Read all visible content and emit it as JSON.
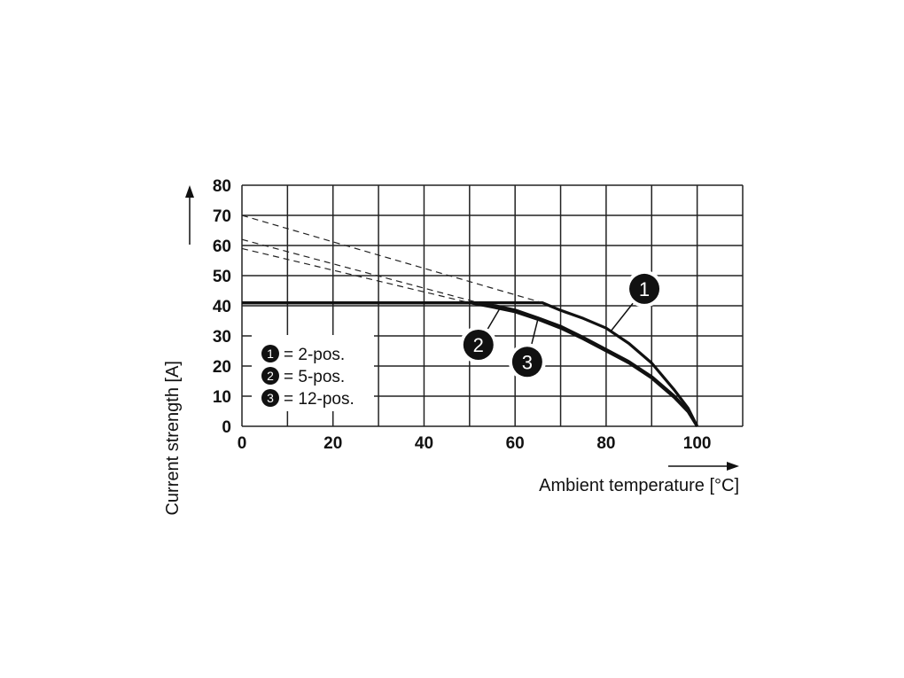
{
  "chart_data": {
    "type": "line",
    "title": "",
    "xlabel": "Ambient temperature [°C]",
    "ylabel": "Current strength [A]",
    "xlim": [
      0,
      110
    ],
    "ylim": [
      0,
      80
    ],
    "xticks": [
      0,
      20,
      40,
      60,
      80,
      100
    ],
    "yticks": [
      0,
      10,
      20,
      30,
      40,
      50,
      60,
      70,
      80
    ],
    "grid": true,
    "legend_placement": "bottom-left",
    "legend": [
      {
        "marker": "1",
        "text": "= 2-pos."
      },
      {
        "marker": "2",
        "text": "= 5-pos."
      },
      {
        "marker": "3",
        "text": "= 12-pos."
      }
    ],
    "series": [
      {
        "name": "1",
        "style": "solid",
        "x": [
          0,
          66,
          70,
          75,
          80,
          85,
          90,
          95,
          98,
          100
        ],
        "y": [
          41,
          41,
          38.5,
          35.8,
          32.6,
          27.5,
          21,
          12,
          6,
          0
        ]
      },
      {
        "name": "2",
        "style": "solid",
        "x": [
          0,
          52,
          56,
          60,
          65,
          70,
          75,
          80,
          85,
          90,
          95,
          98,
          100
        ],
        "y": [
          41,
          41,
          39.9,
          38.6,
          36,
          33.2,
          29.5,
          25.5,
          21.5,
          16.5,
          10,
          5,
          0
        ]
      },
      {
        "name": "3",
        "style": "solid",
        "x": [
          0,
          50,
          55,
          60,
          65,
          70,
          75,
          80,
          85,
          90,
          95,
          98,
          100
        ],
        "y": [
          41,
          41,
          39.6,
          38,
          35.5,
          32.6,
          29,
          25,
          21,
          16,
          9.5,
          4.8,
          0
        ]
      },
      {
        "style": "dashed",
        "x": [
          0,
          66
        ],
        "y": [
          70,
          41
        ]
      },
      {
        "style": "dashed",
        "x": [
          0,
          52
        ],
        "y": [
          62,
          41
        ]
      },
      {
        "style": "dashed",
        "x": [
          0,
          50
        ],
        "y": [
          59,
          41
        ]
      }
    ],
    "callouts": [
      {
        "label": "1",
        "at": [
          81,
          31.5
        ]
      },
      {
        "label": "2",
        "at": [
          57,
          40
        ]
      },
      {
        "label": "3",
        "at": [
          65,
          35.5
        ]
      }
    ]
  }
}
